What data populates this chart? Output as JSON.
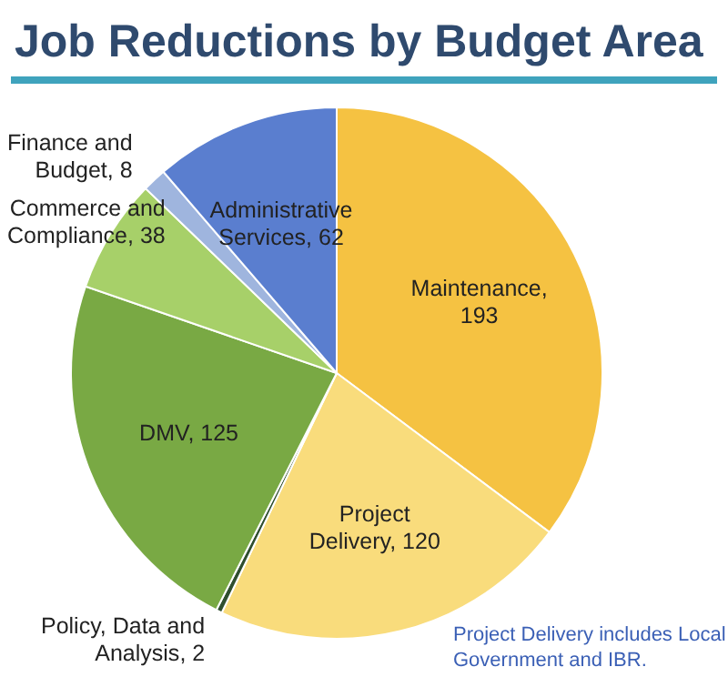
{
  "chart_data": {
    "type": "pie",
    "title": "Job Reductions by Budget Area",
    "categories": [
      "Maintenance",
      "Project Delivery",
      "Policy, Data and Analysis",
      "DMV",
      "Commerce and Compliance",
      "Finance and Budget",
      "Administrative Services"
    ],
    "values": [
      193,
      120,
      2,
      125,
      38,
      8,
      62
    ],
    "colors": [
      "#f5c242",
      "#f9dc7c",
      "#2f4f2f",
      "#79a944",
      "#a7d069",
      "#9fb5de",
      "#5a7ecf"
    ],
    "value_labels": [
      ", 193",
      ", 120",
      ", 2",
      ", 125",
      ", 38",
      ", 8",
      ", 62"
    ],
    "annotations": [
      "Project Delivery includes Local Government and IBR."
    ]
  }
}
